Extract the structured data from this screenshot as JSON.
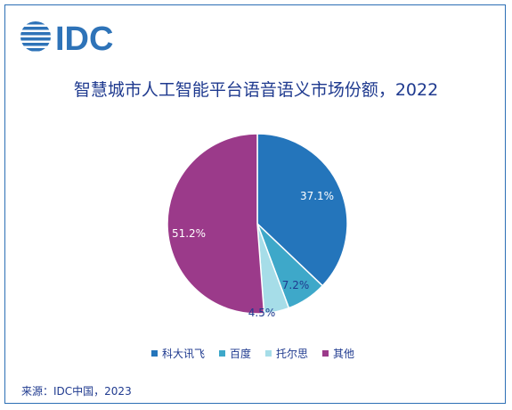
{
  "logo": {
    "text": "IDC",
    "color": "#2e73b8"
  },
  "chart_data": {
    "type": "pie",
    "title": "智慧城市人工智能平台语音语义市场份额，2022",
    "categories": [
      "科大讯飞",
      "百度",
      "托尔思",
      "其他"
    ],
    "values": [
      37.1,
      7.2,
      4.5,
      51.2
    ],
    "labels": [
      "37.1%",
      "7.2%",
      "4.5%",
      "51.2%"
    ],
    "colors": [
      "#2475bb",
      "#3ea8c9",
      "#a6dde8",
      "#9b3a8a"
    ],
    "legend_position": "bottom"
  },
  "source": "来源：IDC中国，2023"
}
